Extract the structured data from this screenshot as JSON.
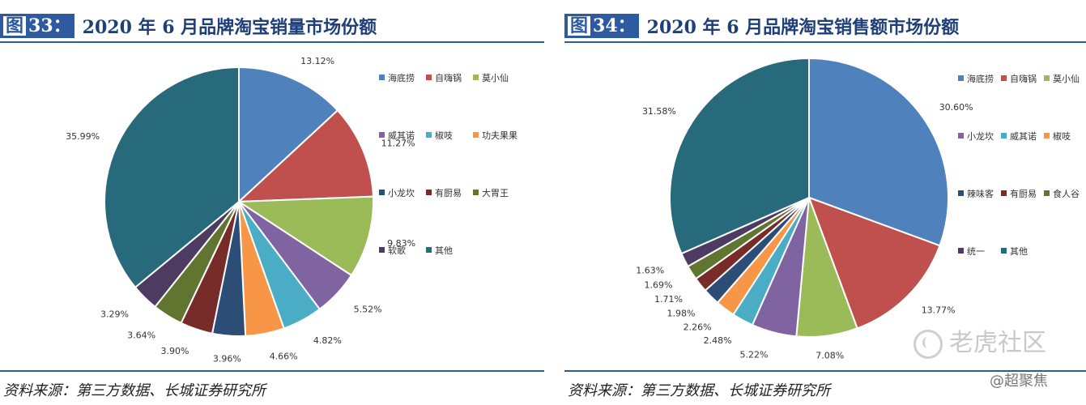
{
  "figures": [
    {
      "fig_label": "图",
      "fig_number": "33：",
      "title": "2020 年 6 月品牌淘宝销量市场份额",
      "source": "资料来源：第三方数据、长城证券研究所"
    },
    {
      "fig_label": "图",
      "fig_number": "34：",
      "title": "2020 年 6 月品牌淘宝销售额市场份额",
      "source": "资料来源：第三方数据、长城证券研究所"
    }
  ],
  "chart_data": [
    {
      "type": "pie",
      "title": "2020 年 6 月品牌淘宝销量市场份额",
      "categories": [
        "海底捞",
        "自嗨锅",
        "莫小仙",
        "威其诺",
        "椒吱",
        "功夫果果",
        "小龙坎",
        "有厨易",
        "大胃王",
        "软歌",
        "其他"
      ],
      "values": [
        13.12,
        11.27,
        9.83,
        5.52,
        4.82,
        4.66,
        3.96,
        3.9,
        3.64,
        3.29,
        35.99
      ],
      "value_labels": [
        "13.12%",
        "11.27%",
        "9.83%",
        "5.52%",
        "4.82%",
        "4.66%",
        "3.96%",
        "3.90%",
        "3.64%",
        "3.29%",
        "35.99%"
      ],
      "colors": [
        "#4f81bd",
        "#c0504d",
        "#9bbb59",
        "#8064a2",
        "#4bacc6",
        "#f79646",
        "#2c4d75",
        "#772c2a",
        "#5f7530",
        "#4d3b62",
        "#276a7c"
      ],
      "legend_position": "right"
    },
    {
      "type": "pie",
      "title": "2020 年 6 月品牌淘宝销售额市场份额",
      "categories": [
        "海底捞",
        "自嗨锅",
        "莫小仙",
        "小龙坎",
        "威其诺",
        "椒吱",
        "辣味客",
        "有厨易",
        "食人谷",
        "统一",
        "其他"
      ],
      "values": [
        30.6,
        13.77,
        7.08,
        5.22,
        2.48,
        2.26,
        1.98,
        1.71,
        1.69,
        1.63,
        31.58
      ],
      "value_labels": [
        "30.60%",
        "13.77%",
        "7.08%",
        "5.22%",
        "2.48%",
        "2.26%",
        "1.98%",
        "1.71%",
        "1.69%",
        "1.63%",
        "31.58%"
      ],
      "colors": [
        "#4f81bd",
        "#c0504d",
        "#9bbb59",
        "#8064a2",
        "#4bacc6",
        "#f79646",
        "#2c4d75",
        "#772c2a",
        "#5f7530",
        "#4d3b62",
        "#276a7c"
      ],
      "legend_position": "right"
    }
  ],
  "watermark": {
    "text": "老虎社区",
    "author": "@超聚焦"
  }
}
